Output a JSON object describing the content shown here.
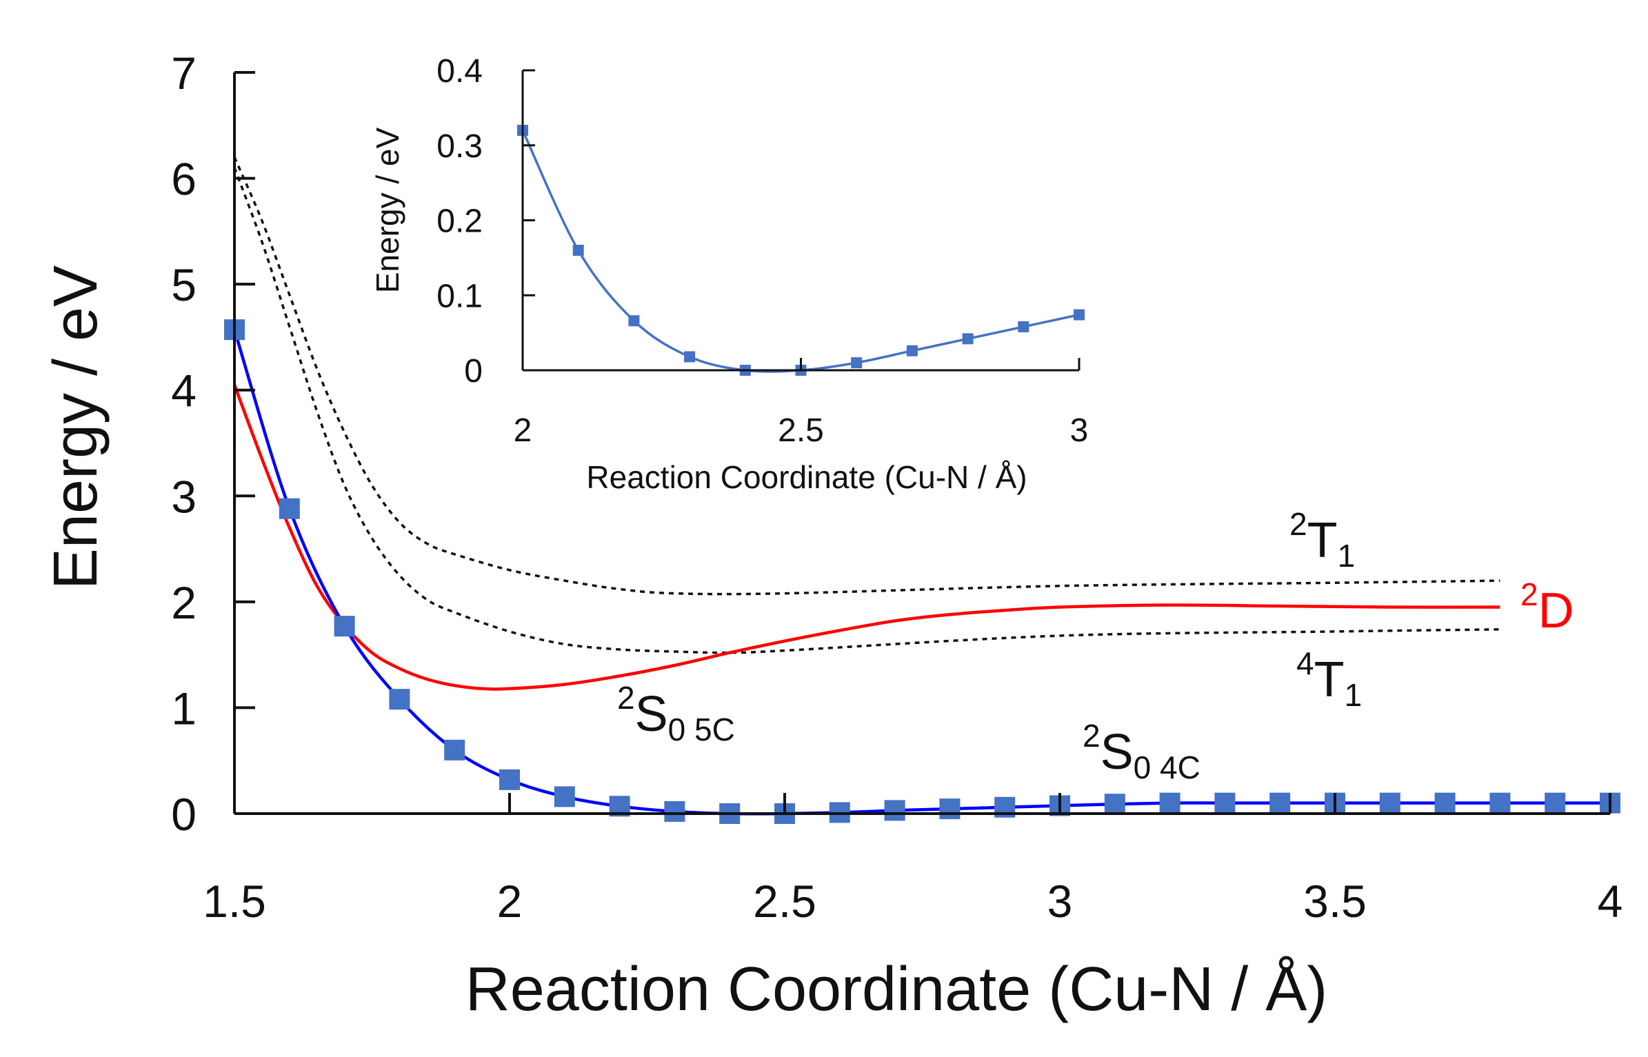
{
  "chart_data": [
    {
      "type": "line",
      "name": "main",
      "xlabel": "Reaction Coordinate (Cu-N / Å)",
      "ylabel": "Energy / eV",
      "xlim": [
        1.5,
        4
      ],
      "ylim": [
        0,
        7
      ],
      "xticks": [
        "1.5",
        "2",
        "2.5",
        "3",
        "3.5",
        "4"
      ],
      "yticks": [
        "0",
        "1",
        "2",
        "3",
        "4",
        "5",
        "6",
        "7"
      ],
      "colors": {
        "red": "#ff0000",
        "blue": "#0000ff",
        "marker": "#4472c4",
        "black": "#111111"
      },
      "series": [
        {
          "name": "2T1",
          "style": "dotted",
          "color": "#111111",
          "x": [
            1.5,
            1.55,
            1.6,
            1.65,
            1.7,
            1.75,
            1.8,
            1.85,
            1.9,
            2.0,
            2.1,
            2.2,
            2.3,
            2.5,
            3.0,
            3.5,
            3.8
          ],
          "y": [
            6.2,
            5.6,
            4.9,
            4.2,
            3.6,
            3.1,
            2.75,
            2.55,
            2.45,
            2.3,
            2.2,
            2.12,
            2.08,
            2.08,
            2.15,
            2.18,
            2.2
          ]
        },
        {
          "name": "4T1",
          "style": "dotted",
          "color": "#111111",
          "x": [
            1.5,
            1.55,
            1.6,
            1.65,
            1.7,
            1.75,
            1.8,
            1.85,
            1.9,
            2.0,
            2.1,
            2.2,
            2.3,
            2.4,
            2.5,
            3.0,
            3.5,
            3.8
          ],
          "y": [
            6.1,
            5.4,
            4.6,
            3.8,
            3.1,
            2.6,
            2.25,
            2.02,
            1.9,
            1.72,
            1.6,
            1.55,
            1.53,
            1.52,
            1.54,
            1.68,
            1.72,
            1.74
          ]
        },
        {
          "name": "2D",
          "style": "solid",
          "color": "#ff0000",
          "x": [
            1.5,
            1.55,
            1.6,
            1.65,
            1.7,
            1.75,
            1.8,
            1.85,
            1.9,
            1.95,
            2.0,
            2.1,
            2.2,
            2.3,
            2.4,
            2.5,
            2.6,
            2.7,
            2.8,
            2.9,
            3.0,
            3.2,
            3.4,
            3.6,
            3.8
          ],
          "y": [
            4.05,
            3.35,
            2.7,
            2.15,
            1.78,
            1.52,
            1.37,
            1.27,
            1.21,
            1.18,
            1.18,
            1.22,
            1.3,
            1.4,
            1.52,
            1.63,
            1.73,
            1.82,
            1.88,
            1.92,
            1.95,
            1.97,
            1.96,
            1.95,
            1.95
          ]
        },
        {
          "name": "2S0 4C",
          "style": "solid-marker",
          "color": "#0000ff",
          "x": [
            1.5,
            1.6,
            1.7,
            1.8,
            1.9,
            2.0,
            2.1,
            2.2,
            2.3,
            2.4,
            2.5,
            2.6,
            2.7,
            2.8,
            2.9,
            3.0,
            3.1,
            3.2,
            3.3,
            3.4,
            3.5,
            3.6,
            3.7,
            3.8,
            3.9,
            4.0
          ],
          "y": [
            4.57,
            2.88,
            1.77,
            1.08,
            0.6,
            0.32,
            0.16,
            0.07,
            0.02,
            0.0,
            0.0,
            0.01,
            0.03,
            0.045,
            0.06,
            0.075,
            0.09,
            0.1,
            0.1,
            0.1,
            0.1,
            0.1,
            0.1,
            0.1,
            0.1,
            0.1
          ]
        }
      ],
      "annotations": {
        "2T1": {
          "base": "2",
          "main": "T",
          "sub": "1"
        },
        "4T1": {
          "base": "4",
          "main": "T",
          "sub": "1"
        },
        "2D": {
          "base": "2",
          "main": "D"
        },
        "2S05C": {
          "base": "2",
          "main": "S",
          "sub": "0 5C"
        },
        "2S04C": {
          "base": "2",
          "main": "S",
          "sub": "0 4C"
        }
      }
    },
    {
      "type": "line",
      "name": "inset",
      "xlabel": "Reaction Coordinate (Cu-N / Å)",
      "ylabel": "Energy / eV",
      "xlim": [
        2,
        3
      ],
      "ylim": [
        0,
        0.4
      ],
      "xticks": [
        "2",
        "2.5",
        "3"
      ],
      "yticks": [
        "0",
        "0.1",
        "0.2",
        "0.3",
        "0.4"
      ],
      "series": [
        {
          "name": "2S0 4C (zoom)",
          "color": "#4472c4",
          "x": [
            2.0,
            2.1,
            2.2,
            2.3,
            2.4,
            2.5,
            2.6,
            2.7,
            2.8,
            2.9,
            3.0
          ],
          "y": [
            0.32,
            0.16,
            0.066,
            0.018,
            0.0,
            0.0,
            0.01,
            0.026,
            0.042,
            0.058,
            0.074
          ]
        }
      ]
    }
  ]
}
